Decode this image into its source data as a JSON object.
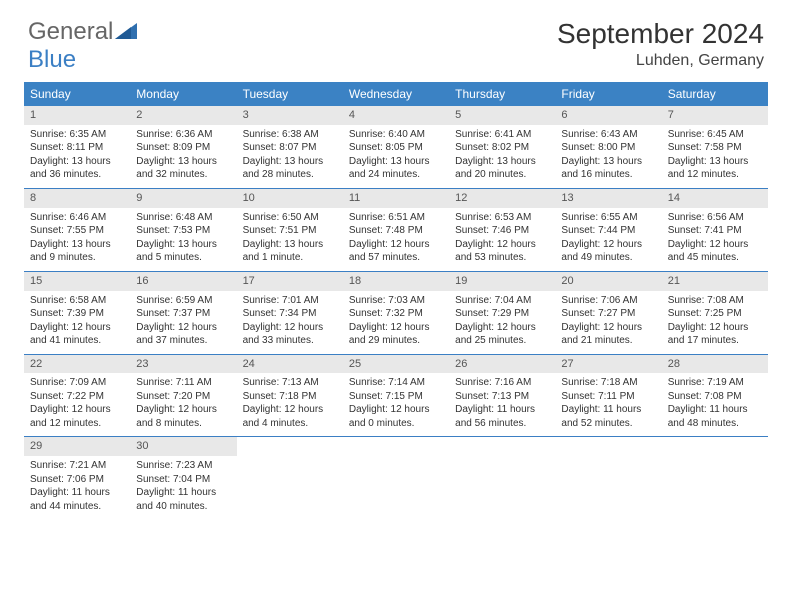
{
  "logo": {
    "text1": "General",
    "text2": "Blue"
  },
  "title": {
    "month": "September 2024",
    "location": "Luhden, Germany"
  },
  "colors": {
    "header_bg": "#3b82c4",
    "header_fg": "#ffffff",
    "num_bg": "#e8e8e8",
    "rule": "#3b7fc4"
  },
  "day_headers": [
    "Sunday",
    "Monday",
    "Tuesday",
    "Wednesday",
    "Thursday",
    "Friday",
    "Saturday"
  ],
  "weeks": [
    [
      {
        "n": "1",
        "sr": "6:35 AM",
        "ss": "8:11 PM",
        "dl": "13 hours and 36 minutes."
      },
      {
        "n": "2",
        "sr": "6:36 AM",
        "ss": "8:09 PM",
        "dl": "13 hours and 32 minutes."
      },
      {
        "n": "3",
        "sr": "6:38 AM",
        "ss": "8:07 PM",
        "dl": "13 hours and 28 minutes."
      },
      {
        "n": "4",
        "sr": "6:40 AM",
        "ss": "8:05 PM",
        "dl": "13 hours and 24 minutes."
      },
      {
        "n": "5",
        "sr": "6:41 AM",
        "ss": "8:02 PM",
        "dl": "13 hours and 20 minutes."
      },
      {
        "n": "6",
        "sr": "6:43 AM",
        "ss": "8:00 PM",
        "dl": "13 hours and 16 minutes."
      },
      {
        "n": "7",
        "sr": "6:45 AM",
        "ss": "7:58 PM",
        "dl": "13 hours and 12 minutes."
      }
    ],
    [
      {
        "n": "8",
        "sr": "6:46 AM",
        "ss": "7:55 PM",
        "dl": "13 hours and 9 minutes."
      },
      {
        "n": "9",
        "sr": "6:48 AM",
        "ss": "7:53 PM",
        "dl": "13 hours and 5 minutes."
      },
      {
        "n": "10",
        "sr": "6:50 AM",
        "ss": "7:51 PM",
        "dl": "13 hours and 1 minute."
      },
      {
        "n": "11",
        "sr": "6:51 AM",
        "ss": "7:48 PM",
        "dl": "12 hours and 57 minutes."
      },
      {
        "n": "12",
        "sr": "6:53 AM",
        "ss": "7:46 PM",
        "dl": "12 hours and 53 minutes."
      },
      {
        "n": "13",
        "sr": "6:55 AM",
        "ss": "7:44 PM",
        "dl": "12 hours and 49 minutes."
      },
      {
        "n": "14",
        "sr": "6:56 AM",
        "ss": "7:41 PM",
        "dl": "12 hours and 45 minutes."
      }
    ],
    [
      {
        "n": "15",
        "sr": "6:58 AM",
        "ss": "7:39 PM",
        "dl": "12 hours and 41 minutes."
      },
      {
        "n": "16",
        "sr": "6:59 AM",
        "ss": "7:37 PM",
        "dl": "12 hours and 37 minutes."
      },
      {
        "n": "17",
        "sr": "7:01 AM",
        "ss": "7:34 PM",
        "dl": "12 hours and 33 minutes."
      },
      {
        "n": "18",
        "sr": "7:03 AM",
        "ss": "7:32 PM",
        "dl": "12 hours and 29 minutes."
      },
      {
        "n": "19",
        "sr": "7:04 AM",
        "ss": "7:29 PM",
        "dl": "12 hours and 25 minutes."
      },
      {
        "n": "20",
        "sr": "7:06 AM",
        "ss": "7:27 PM",
        "dl": "12 hours and 21 minutes."
      },
      {
        "n": "21",
        "sr": "7:08 AM",
        "ss": "7:25 PM",
        "dl": "12 hours and 17 minutes."
      }
    ],
    [
      {
        "n": "22",
        "sr": "7:09 AM",
        "ss": "7:22 PM",
        "dl": "12 hours and 12 minutes."
      },
      {
        "n": "23",
        "sr": "7:11 AM",
        "ss": "7:20 PM",
        "dl": "12 hours and 8 minutes."
      },
      {
        "n": "24",
        "sr": "7:13 AM",
        "ss": "7:18 PM",
        "dl": "12 hours and 4 minutes."
      },
      {
        "n": "25",
        "sr": "7:14 AM",
        "ss": "7:15 PM",
        "dl": "12 hours and 0 minutes."
      },
      {
        "n": "26",
        "sr": "7:16 AM",
        "ss": "7:13 PM",
        "dl": "11 hours and 56 minutes."
      },
      {
        "n": "27",
        "sr": "7:18 AM",
        "ss": "7:11 PM",
        "dl": "11 hours and 52 minutes."
      },
      {
        "n": "28",
        "sr": "7:19 AM",
        "ss": "7:08 PM",
        "dl": "11 hours and 48 minutes."
      }
    ],
    [
      {
        "n": "29",
        "sr": "7:21 AM",
        "ss": "7:06 PM",
        "dl": "11 hours and 44 minutes."
      },
      {
        "n": "30",
        "sr": "7:23 AM",
        "ss": "7:04 PM",
        "dl": "11 hours and 40 minutes."
      },
      null,
      null,
      null,
      null,
      null
    ]
  ],
  "labels": {
    "sunrise": "Sunrise: ",
    "sunset": "Sunset: ",
    "daylight": "Daylight: "
  }
}
